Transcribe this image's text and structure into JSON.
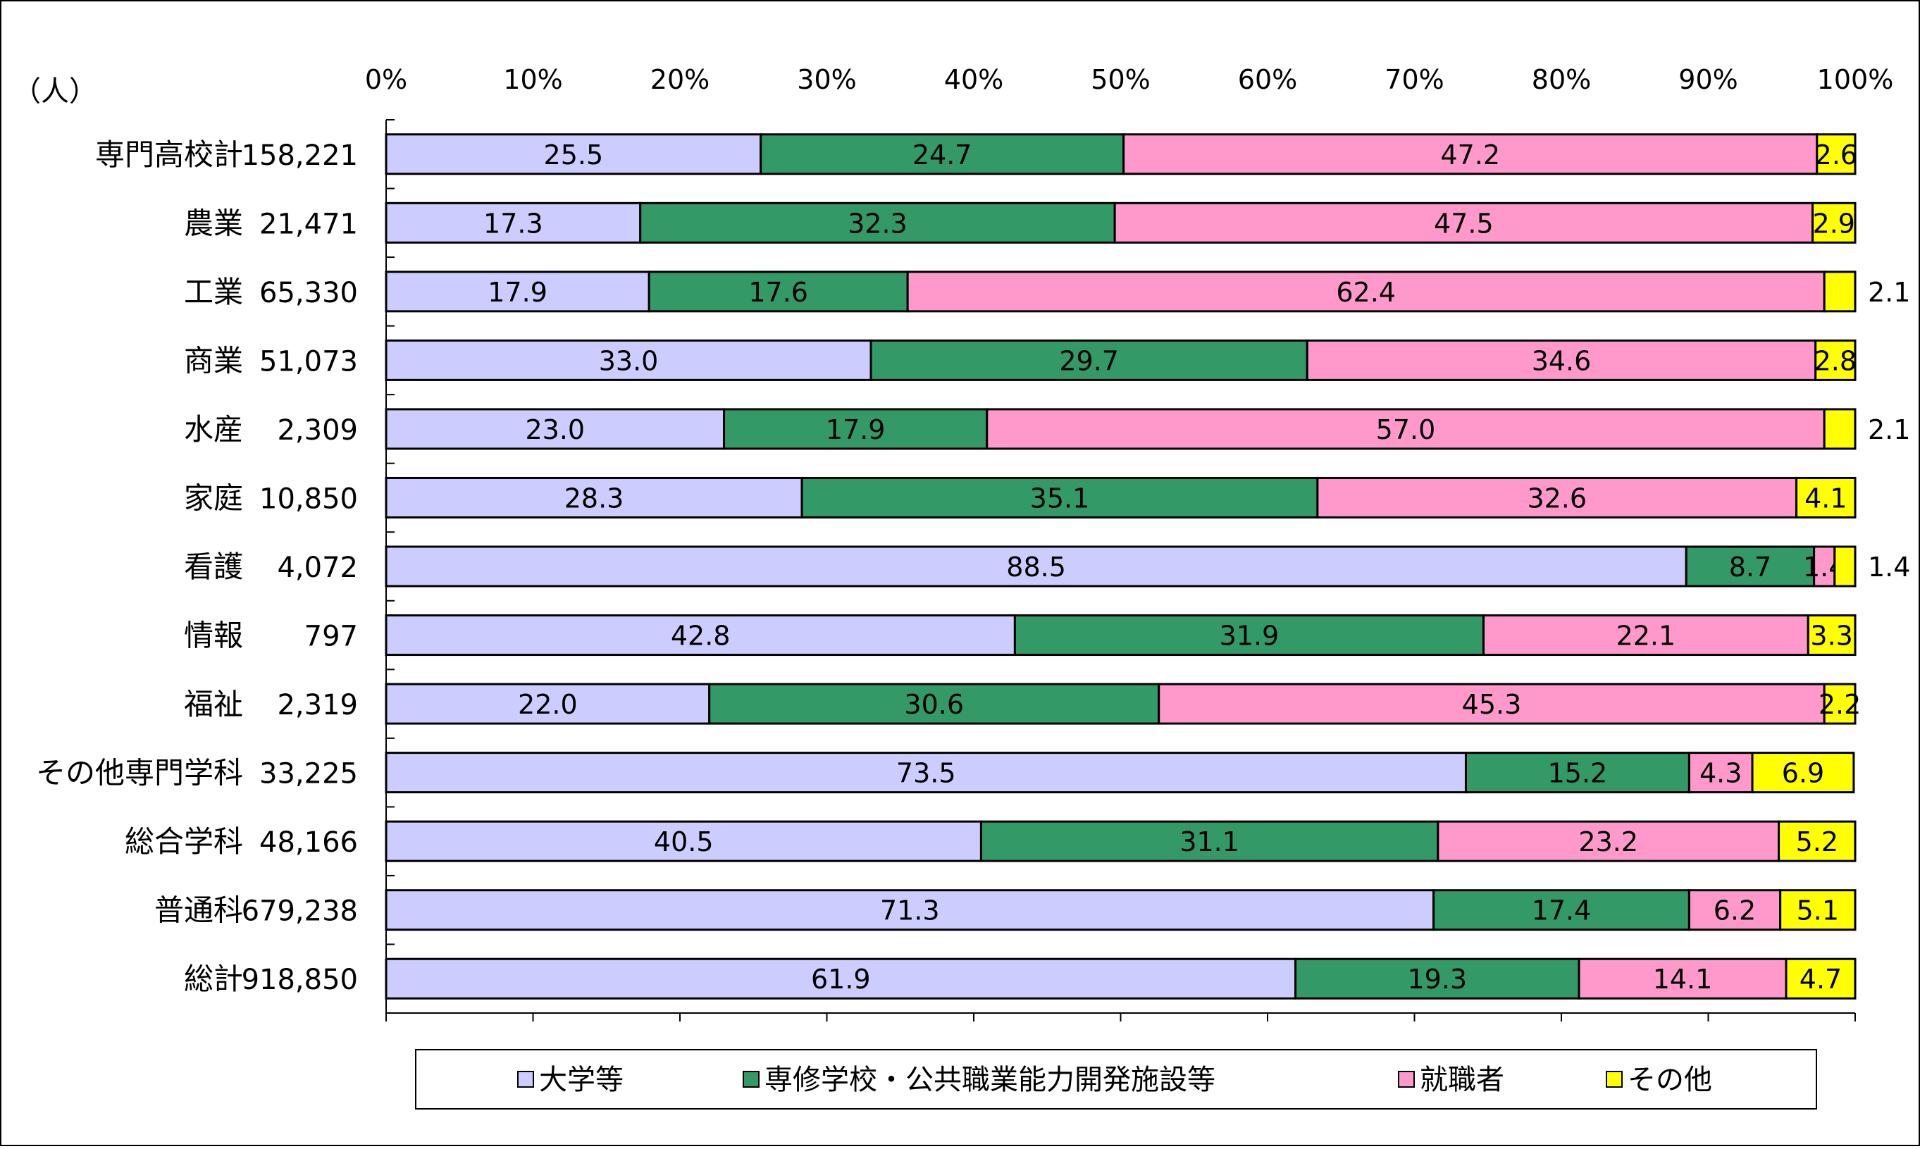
{
  "chart_data": {
    "type": "bar",
    "orientation": "horizontal",
    "stacked": true,
    "percent_stacked": true,
    "unit_label": "（人）",
    "x_ticks": [
      "0%",
      "10%",
      "20%",
      "30%",
      "40%",
      "50%",
      "60%",
      "70%",
      "80%",
      "90%",
      "100%"
    ],
    "xlim": [
      0,
      100
    ],
    "grid": false,
    "legend_position": "bottom",
    "categories": [
      {
        "label": "専門高校計",
        "count": "158,221"
      },
      {
        "label": "農業",
        "count": "21,471"
      },
      {
        "label": "工業",
        "count": "65,330"
      },
      {
        "label": "商業",
        "count": "51,073"
      },
      {
        "label": "水産",
        "count": "2,309"
      },
      {
        "label": "家庭",
        "count": "10,850"
      },
      {
        "label": "看護",
        "count": "4,072"
      },
      {
        "label": "情報",
        "count": "797"
      },
      {
        "label": "福祉",
        "count": "2,319"
      },
      {
        "label": "その他専門学科",
        "count": "33,225"
      },
      {
        "label": "総合学科",
        "count": "48,166"
      },
      {
        "label": "普通科",
        "count": "679,238"
      },
      {
        "label": "総計",
        "count": "918,850"
      }
    ],
    "series": [
      {
        "name": "大学等",
        "color": "#ccccff",
        "values": [
          25.5,
          17.3,
          17.9,
          33.0,
          23.0,
          28.3,
          88.5,
          42.8,
          22.0,
          73.5,
          40.5,
          71.3,
          61.9
        ],
        "labels": [
          "25.5",
          "17.3",
          "17.9",
          "33.0",
          "23.0",
          "28.3",
          "88.5",
          "42.8",
          "22.0",
          "73.5",
          "40.5",
          "71.3",
          "61.9"
        ]
      },
      {
        "name": "専修学校・公共職業能力開発施設等",
        "color": "#339966",
        "values": [
          24.7,
          32.3,
          17.6,
          29.7,
          17.9,
          35.1,
          8.7,
          31.9,
          30.6,
          15.2,
          31.1,
          17.4,
          19.3
        ],
        "labels": [
          "24.7",
          "32.3",
          "17.6",
          "29.7",
          "17.9",
          "35.1",
          "8.7",
          "31.9",
          "30.6",
          "15.2",
          "31.1",
          "17.4",
          "19.3"
        ]
      },
      {
        "name": "就職者",
        "color": "#ff99cc",
        "values": [
          47.2,
          47.5,
          62.4,
          34.6,
          57.0,
          32.6,
          1.4,
          22.1,
          45.3,
          4.3,
          23.2,
          6.2,
          14.1
        ],
        "labels": [
          "47.2",
          "47.5",
          "62.4",
          "34.6",
          "57.0",
          "32.6",
          "1.4",
          "22.1",
          "45.3",
          "4.3",
          "23.2",
          "6.2",
          "14.1"
        ]
      },
      {
        "name": "その他",
        "color": "#ffff00",
        "values": [
          2.6,
          2.9,
          2.1,
          2.8,
          2.1,
          4.1,
          1.4,
          3.3,
          2.2,
          6.9,
          5.2,
          5.1,
          4.7
        ],
        "labels": [
          "2.6",
          "2.9",
          "2.1",
          "2.8",
          "2.1",
          "4.1",
          "1.4",
          "3.3",
          "2.2",
          "6.9",
          "5.2",
          "5.1",
          "4.7"
        ],
        "outside_labels": [
          false,
          false,
          true,
          false,
          true,
          false,
          true,
          false,
          false,
          false,
          false,
          false,
          false
        ]
      }
    ]
  }
}
